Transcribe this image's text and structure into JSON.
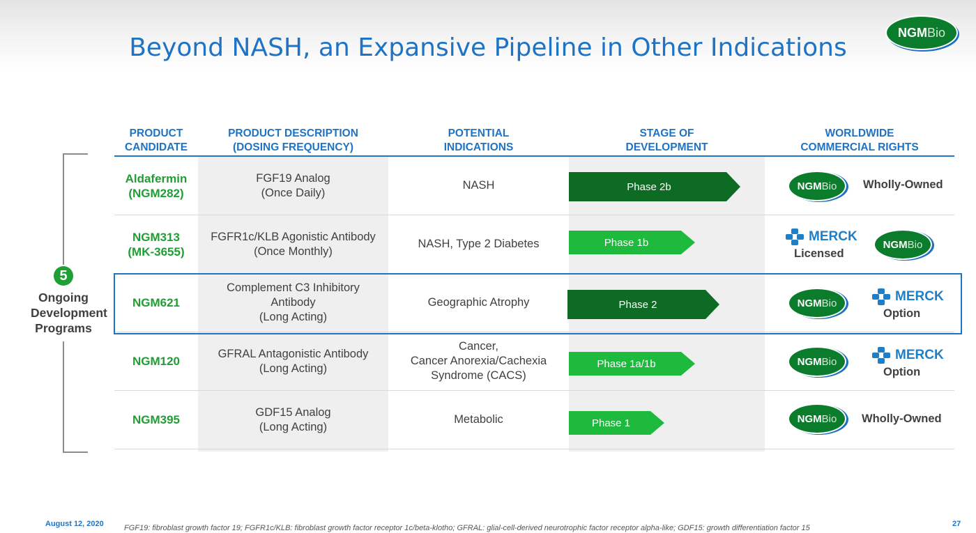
{
  "title": "Beyond NASH, an Expansive Pipeline in Other Indications",
  "brand": {
    "ngm": "NGM",
    "bio": "Bio",
    "merck": "MERCK",
    "color_green": "#0b7c2b",
    "color_blue": "#1f73c4"
  },
  "headers": {
    "candidate": [
      "PRODUCT",
      "CANDIDATE"
    ],
    "description": [
      "PRODUCT DESCRIPTION",
      "(DOSING FREQUENCY)"
    ],
    "indications": [
      "POTENTIAL",
      "INDICATIONS"
    ],
    "stage": [
      "STAGE OF",
      "DEVELOPMENT"
    ],
    "rights": [
      "WORLDWIDE",
      "COMMERCIAL RIGHTS"
    ]
  },
  "rows": [
    {
      "candidate": [
        "Aldafermin",
        "(NGM282)"
      ],
      "description": [
        "FGF19 Analog",
        "(Once Daily)"
      ],
      "indications": [
        "NASH"
      ],
      "phase": "Phase 2b",
      "rights_text": "Wholly-Owned"
    },
    {
      "candidate": [
        "NGM313",
        "(MK-3655)"
      ],
      "description": [
        "FGFR1c/KLB Agonistic Antibody",
        "(Once Monthly)"
      ],
      "indications": [
        "NASH, Type 2 Diabetes"
      ],
      "phase": "Phase 1b",
      "rights_text": "Licensed"
    },
    {
      "candidate": [
        "NGM621"
      ],
      "description": [
        "Complement C3 Inhibitory",
        "Antibody",
        "(Long Acting)"
      ],
      "indications": [
        "Geographic Atrophy"
      ],
      "phase": "Phase 2",
      "rights_text": "Option"
    },
    {
      "candidate": [
        "NGM120"
      ],
      "description": [
        "GFRAL Antagonistic Antibody",
        "(Long Acting)"
      ],
      "indications": [
        "Cancer,",
        "Cancer Anorexia/Cachexia",
        "Syndrome (CACS)"
      ],
      "phase": "Phase 1a/1b",
      "rights_text": "Option"
    },
    {
      "candidate": [
        "NGM395"
      ],
      "description": [
        "GDF15 Analog",
        "(Long Acting)"
      ],
      "indications": [
        "Metabolic"
      ],
      "phase": "Phase 1",
      "rights_text": "Wholly-Owned"
    }
  ],
  "ongoing": {
    "count": "5",
    "label": [
      "Ongoing",
      "Development",
      "Programs"
    ]
  },
  "footer": {
    "date": "August 12, 2020",
    "note": "FGF19:  fibroblast growth factor 19; FGFR1c/KLB:  fibroblast growth factor receptor 1c/beta-klotho; GFRAL:  glial-cell-derived neurotrophic factor receptor alpha-like; GDF15:  growth differentiation factor 15",
    "page": "27"
  }
}
